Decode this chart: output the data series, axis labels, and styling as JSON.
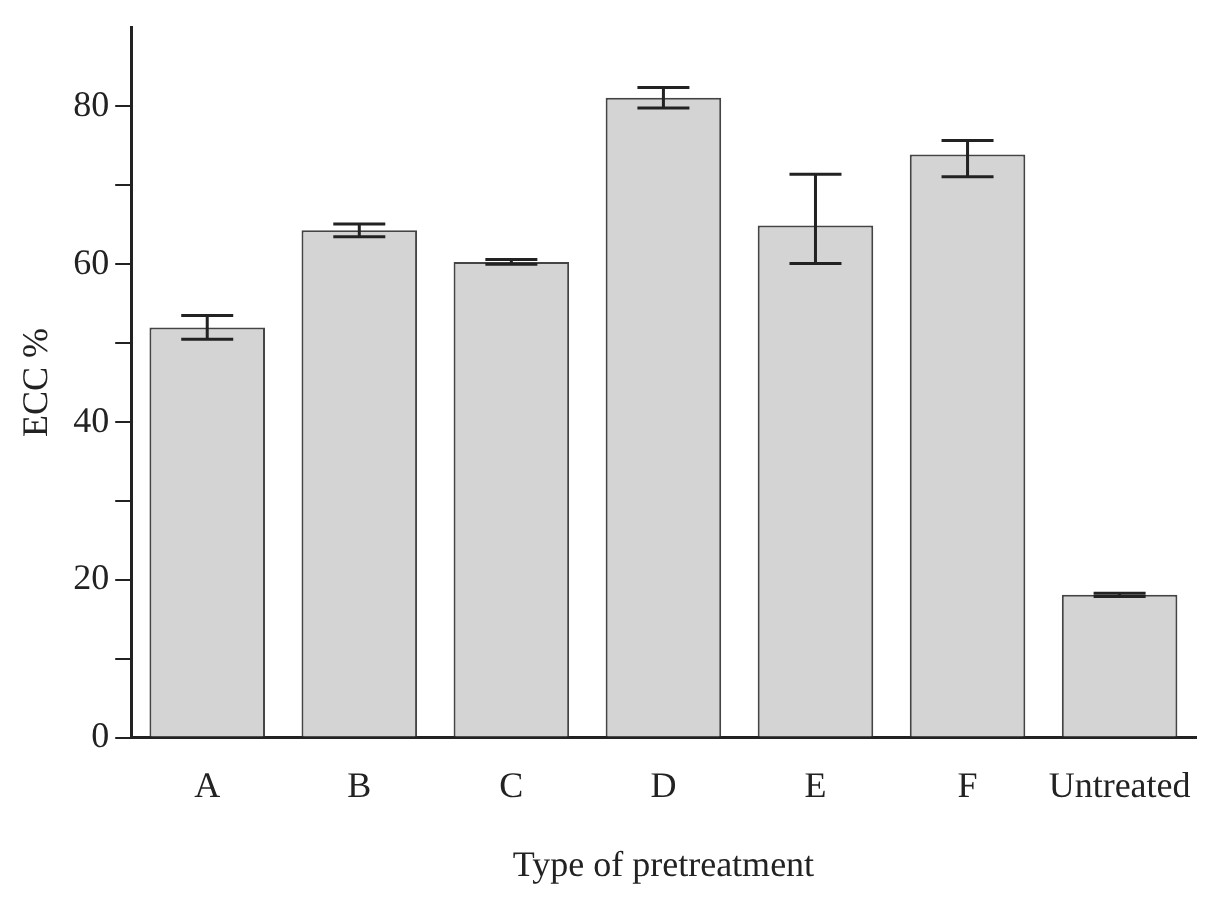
{
  "chart_data": {
    "type": "bar",
    "xlabel": "Type of pretreatment",
    "ylabel": "ECC %",
    "categories": [
      "A",
      "B",
      "C",
      "D",
      "E",
      "F",
      "Untreated"
    ],
    "values": [
      52.0,
      64.3,
      60.3,
      81.1,
      64.9,
      73.9,
      18.1
    ],
    "errors": [
      1.5,
      0.8,
      0.3,
      1.3,
      [
        60.1,
        71.4
      ],
      [
        71.1,
        75.7
      ],
      0.2
    ],
    "color": "#d4d4d4",
    "ylim": [
      0,
      90
    ],
    "yticks": [
      0,
      {
        "value": 10,
        "label": null
      },
      20,
      {
        "value": 30,
        "label": null
      },
      40,
      {
        "value": 50,
        "label": null
      },
      60,
      {
        "value": 70,
        "label": null
      },
      80
    ],
    "grid": false
  }
}
